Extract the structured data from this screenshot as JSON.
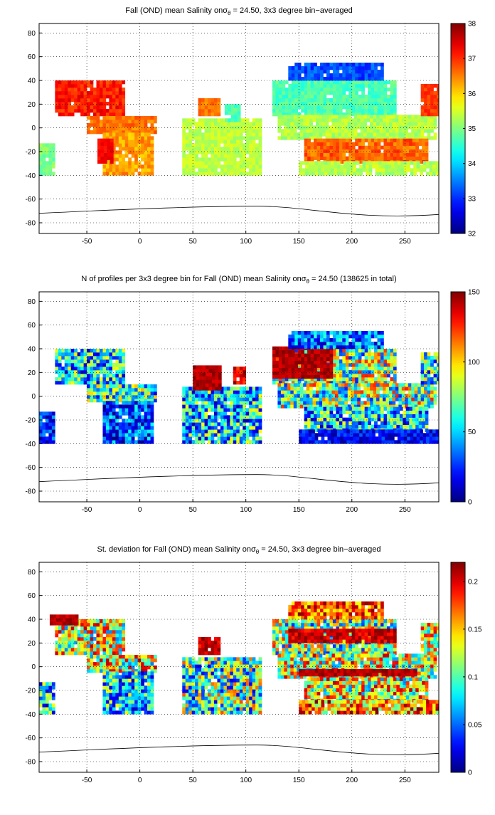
{
  "maps": [
    {
      "title": {
        "before": "Fall (OND) mean Salinity on",
        "symbol": "σ",
        "subscript": "θ",
        "after": " = 24.50, 3x3 degree bin−averaged"
      },
      "xlim": [
        -95,
        282
      ],
      "ylim": [
        -89,
        88
      ],
      "xticks": [
        -50,
        0,
        50,
        100,
        150,
        200,
        250
      ],
      "yticks": [
        -80,
        -60,
        -40,
        -20,
        0,
        20,
        40,
        60,
        80
      ],
      "grid": true,
      "colorbar": {
        "colormap": "jet",
        "lim": [
          32,
          38
        ],
        "ticks": [
          32,
          33,
          34,
          35,
          36,
          37,
          38
        ]
      }
    },
    {
      "title": {
        "before": "N of profiles per 3x3 degree bin for Fall (OND) mean Salinity on",
        "symbol": "σ",
        "subscript": "θ",
        "after": " = 24.50 (138625 in total)"
      },
      "xlim": [
        -95,
        282
      ],
      "ylim": [
        -89,
        88
      ],
      "xticks": [
        -50,
        0,
        50,
        100,
        150,
        200,
        250
      ],
      "yticks": [
        -80,
        -60,
        -40,
        -20,
        0,
        20,
        40,
        60,
        80
      ],
      "grid": true,
      "colorbar": {
        "colormap": "jet",
        "lim": [
          0,
          150
        ],
        "ticks": [
          0,
          50,
          100,
          150
        ]
      }
    },
    {
      "title": {
        "before": "St. deviation for Fall (OND) mean Salinity on",
        "symbol": "σ",
        "subscript": "θ",
        "after": " = 24.50, 3x3 degree bin−averaged"
      },
      "xlim": [
        -95,
        282
      ],
      "ylim": [
        -89,
        88
      ],
      "xticks": [
        -50,
        0,
        50,
        100,
        150,
        200,
        250
      ],
      "yticks": [
        -80,
        -60,
        -40,
        -20,
        0,
        20,
        40,
        60,
        80
      ],
      "grid": true,
      "colorbar": {
        "colormap": "jet",
        "lim": [
          0,
          0.22
        ],
        "ticks": [
          0,
          0.05,
          0.1,
          0.15,
          0.2
        ]
      }
    }
  ]
}
